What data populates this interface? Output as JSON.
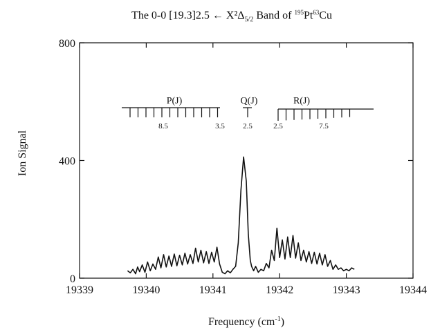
{
  "chart_data": {
    "type": "line",
    "title": "The 0-0 [19.3]2.5 ← X²Δ",
    "title_sub": "5/2",
    "title_mid": " Band of ",
    "title_iso1": "195",
    "title_el1": "Pt",
    "title_iso2": "63",
    "title_el2": "Cu",
    "xlabel": "Frequency (cm",
    "xlabel_sup": "-1",
    "xlabel_end": ")",
    "ylabel": "Ion Signal",
    "xlim": [
      19339,
      19344
    ],
    "ylim": [
      0,
      800
    ],
    "x_ticks": [
      19339,
      19340,
      19341,
      19342,
      19343,
      19344
    ],
    "y_ticks": [
      0,
      400,
      800
    ],
    "grid": false,
    "series": [
      {
        "x": [
          19339.72,
          19339.76,
          19339.8,
          19339.84,
          19339.87,
          19339.9,
          19339.94,
          19339.98,
          19340.02,
          19340.06,
          19340.1,
          19340.14,
          19340.18,
          19340.22,
          19340.26,
          19340.3,
          19340.34,
          19340.38,
          19340.42,
          19340.46,
          19340.5,
          19340.54,
          19340.58,
          19340.62,
          19340.66,
          19340.7,
          19340.74,
          19340.78,
          19340.82,
          19340.86,
          19340.9,
          19340.94,
          19340.98,
          19341.02,
          19341.06,
          19341.1,
          19341.14,
          19341.18,
          19341.22,
          19341.26,
          19341.3,
          19341.34,
          19341.38,
          19341.42,
          19341.46,
          19341.5,
          19341.53,
          19341.56,
          19341.58,
          19341.61,
          19341.64,
          19341.68,
          19341.72,
          19341.76,
          19341.8,
          19341.84,
          19341.88,
          19341.92,
          19341.96,
          19342.0,
          19342.04,
          19342.08,
          19342.12,
          19342.16,
          19342.2,
          19342.24,
          19342.28,
          19342.32,
          19342.36,
          19342.4,
          19342.44,
          19342.48,
          19342.52,
          19342.56,
          19342.6,
          19342.64,
          19342.68,
          19342.72,
          19342.76,
          19342.8,
          19342.84,
          19342.88,
          19342.92,
          19342.96,
          19343.0,
          19343.04,
          19343.08,
          19343.12
        ],
        "y": [
          25,
          18,
          30,
          15,
          38,
          22,
          45,
          20,
          55,
          25,
          48,
          30,
          72,
          35,
          80,
          38,
          75,
          40,
          82,
          42,
          78,
          45,
          85,
          48,
          80,
          50,
          102,
          55,
          95,
          52,
          90,
          50,
          88,
          55,
          105,
          48,
          20,
          15,
          25,
          18,
          30,
          40,
          120,
          300,
          412,
          330,
          150,
          60,
          40,
          25,
          40,
          20,
          30,
          25,
          50,
          35,
          95,
          60,
          170,
          70,
          130,
          65,
          140,
          70,
          145,
          68,
          120,
          60,
          95,
          55,
          90,
          50,
          88,
          48,
          85,
          45,
          80,
          40,
          60,
          30,
          45,
          30,
          35,
          25,
          30,
          25,
          35,
          30
        ]
      }
    ],
    "annotations": {
      "p_branch": {
        "label": "P(J)",
        "tick_labels": [
          "8.5",
          "3.5"
        ]
      },
      "q_branch": {
        "label": "Q(J)",
        "tick_labels": [
          "2.5"
        ]
      },
      "r_branch": {
        "label": "R(J)",
        "tick_labels": [
          "2.5",
          "7.5"
        ]
      }
    }
  }
}
